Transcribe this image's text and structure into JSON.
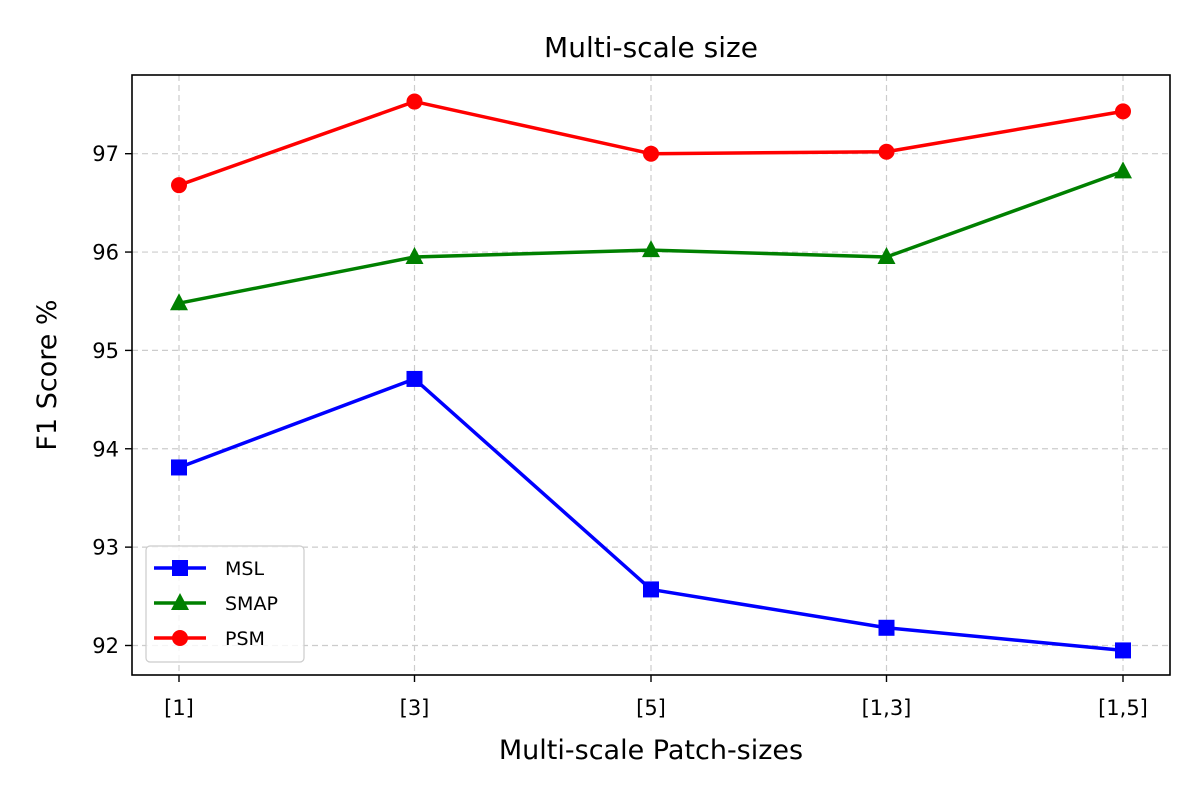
{
  "chart_data": {
    "type": "line",
    "title": "Multi-scale size",
    "xlabel": "Multi-scale Patch-sizes",
    "ylabel": "F1 Score %",
    "categories": [
      "[1]",
      "[3]",
      "[5]",
      "[1,3]",
      "[1,5]"
    ],
    "ylim": [
      91.7,
      97.8
    ],
    "yticks": [
      92,
      93,
      94,
      95,
      96,
      97
    ],
    "grid": true,
    "legend_position": "lower-left",
    "series": [
      {
        "name": "MSL",
        "color": "#0000ff",
        "marker": "square",
        "values": [
          93.81,
          94.71,
          92.57,
          92.18,
          91.95
        ]
      },
      {
        "name": "SMAP",
        "color": "#008000",
        "marker": "triangle",
        "values": [
          95.48,
          95.95,
          96.02,
          95.95,
          96.82
        ]
      },
      {
        "name": "PSM",
        "color": "#ff0000",
        "marker": "circle",
        "values": [
          96.68,
          97.53,
          97.0,
          97.02,
          97.43
        ]
      }
    ]
  }
}
